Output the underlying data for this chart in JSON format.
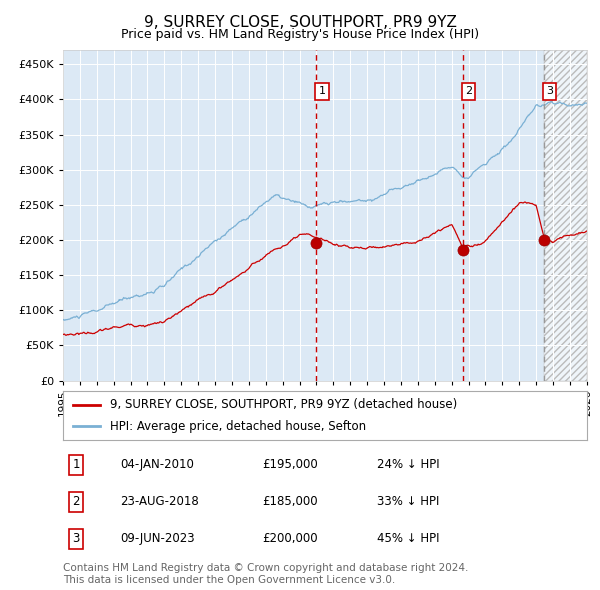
{
  "title": "9, SURREY CLOSE, SOUTHPORT, PR9 9YZ",
  "subtitle": "Price paid vs. HM Land Registry's House Price Index (HPI)",
  "ylim": [
    0,
    470000
  ],
  "yticks": [
    0,
    50000,
    100000,
    150000,
    200000,
    250000,
    300000,
    350000,
    400000,
    450000
  ],
  "ytick_labels": [
    "£0",
    "£50K",
    "£100K",
    "£150K",
    "£200K",
    "£250K",
    "£300K",
    "£350K",
    "£400K",
    "£450K"
  ],
  "xlim_start": 1995.0,
  "xlim_end": 2026.0,
  "background_color": "#ffffff",
  "chart_bg_color": "#dce9f5",
  "hatch_region_start": 2023.45,
  "sale_color": "#cc0000",
  "hpi_color": "#7ab0d4",
  "sale_label": "9, SURREY CLOSE, SOUTHPORT, PR9 9YZ (detached house)",
  "hpi_label": "HPI: Average price, detached house, Sefton",
  "transactions": [
    {
      "id": 1,
      "date": 2010.0,
      "price": 195000,
      "date_str": "04-JAN-2010",
      "price_str": "£195,000",
      "pct": "24%"
    },
    {
      "id": 2,
      "date": 2018.65,
      "price": 185000,
      "date_str": "23-AUG-2018",
      "price_str": "£185,000",
      "pct": "33%"
    },
    {
      "id": 3,
      "date": 2023.45,
      "price": 200000,
      "date_str": "09-JUN-2023",
      "price_str": "£200,000",
      "pct": "45%"
    }
  ],
  "footer": "Contains HM Land Registry data © Crown copyright and database right 2024.\nThis data is licensed under the Open Government Licence v3.0.",
  "title_fontsize": 11,
  "subtitle_fontsize": 9,
  "tick_fontsize": 8,
  "legend_fontsize": 8.5,
  "table_fontsize": 8.5,
  "footer_fontsize": 7.5
}
